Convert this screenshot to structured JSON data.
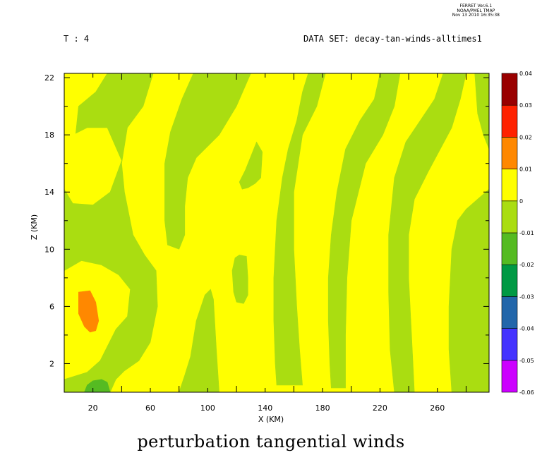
{
  "header": {
    "time_label": "T : 4",
    "dataset_label": "DATA SET: decay-tan-winds-alltimes1",
    "ferret_lines": [
      "FERRET  Ver.6.1",
      "NOAA/PMEL TMAP",
      "Nov 13 2010 16:35:38"
    ]
  },
  "chart_data": {
    "type": "heatmap",
    "title": "perturbation tangential winds",
    "xlabel": "X (KM)",
    "ylabel": "Z (KM)",
    "xlim": [
      0,
      296
    ],
    "ylim": [
      0,
      22.3
    ],
    "x_ticks": [
      20,
      60,
      100,
      140,
      180,
      220,
      260
    ],
    "y_ticks": [
      2,
      6,
      10,
      14,
      18,
      22
    ],
    "colorbar": {
      "levels": [
        -0.06,
        -0.05,
        -0.04,
        -0.03,
        -0.02,
        -0.01,
        0,
        0.01,
        0.02,
        0.03,
        0.04
      ],
      "labels": [
        "-0.06",
        "-0.05",
        "-0.04",
        "-0.03",
        "-0.02",
        "-0.01",
        "0",
        "0.01",
        "0.02",
        "0.03",
        "0.04"
      ],
      "colors": [
        "#cc00ff",
        "#4433ff",
        "#2266aa",
        "#009944",
        "#55bb22",
        "#aadd11",
        "#ffff00",
        "#ff8800",
        "#ff2200",
        "#990000"
      ]
    },
    "background_level_color": "#ffff00",
    "regions": [
      {
        "level": "-0.01 to 0",
        "color": "#aadd11",
        "polygon": [
          [
            30,
            22.3
          ],
          [
            62,
            22.3
          ],
          [
            55,
            20
          ],
          [
            44,
            18.5
          ],
          [
            40,
            16
          ],
          [
            42,
            14
          ],
          [
            48,
            11
          ],
          [
            56,
            9.6
          ],
          [
            64,
            8.5
          ],
          [
            65,
            6
          ],
          [
            60,
            3.5
          ],
          [
            52,
            2.2
          ],
          [
            42,
            1.5
          ],
          [
            36,
            0.9
          ],
          [
            32,
            0
          ],
          [
            0,
            0
          ],
          [
            0,
            0.9
          ],
          [
            16,
            1.4
          ],
          [
            25,
            2.2
          ],
          [
            30,
            3.2
          ],
          [
            36,
            4.4
          ],
          [
            44,
            5.3
          ],
          [
            46,
            7.2
          ],
          [
            38,
            8.2
          ],
          [
            26,
            8.9
          ],
          [
            12,
            9.2
          ],
          [
            0,
            8.5
          ],
          [
            0,
            14.2
          ],
          [
            6,
            13.2
          ],
          [
            20,
            13.1
          ],
          [
            32,
            14
          ],
          [
            40,
            16.2
          ],
          [
            30,
            18.5
          ],
          [
            16,
            18.5
          ],
          [
            8,
            18.1
          ],
          [
            10,
            20
          ],
          [
            22,
            21
          ]
        ]
      },
      {
        "level": "-0.01 to 0",
        "color": "#aadd11",
        "polygon": [
          [
            90,
            22.3
          ],
          [
            130,
            22.3
          ],
          [
            120,
            20
          ],
          [
            108,
            18
          ],
          [
            92,
            16.4
          ],
          [
            86,
            15
          ],
          [
            84,
            13
          ],
          [
            84,
            11
          ],
          [
            80,
            10
          ],
          [
            72,
            10.3
          ],
          [
            70,
            12
          ],
          [
            70,
            16
          ],
          [
            74,
            18.2
          ],
          [
            82,
            20.5
          ]
        ]
      },
      {
        "level": "-0.01 to 0",
        "color": "#aadd11",
        "polygon": [
          [
            80,
            0
          ],
          [
            108,
            0
          ],
          [
            106,
            3
          ],
          [
            104,
            6.5
          ],
          [
            102,
            7.2
          ],
          [
            98,
            6.8
          ],
          [
            92,
            5
          ],
          [
            88,
            2.5
          ],
          [
            84,
            1.2
          ]
        ]
      },
      {
        "level": "-0.01 to 0",
        "color": "#aadd11",
        "polygon": [
          [
            134,
            17.5
          ],
          [
            138,
            16.8
          ],
          [
            137,
            15
          ],
          [
            133,
            14.6
          ],
          [
            128,
            14.3
          ],
          [
            124,
            14.2
          ],
          [
            122,
            14.7
          ],
          [
            126,
            15.5
          ],
          [
            130,
            16.5
          ]
        ]
      },
      {
        "level": "-0.01 to 0",
        "color": "#aadd11",
        "polygon": [
          [
            122,
            9.6
          ],
          [
            127,
            9.5
          ],
          [
            128,
            8
          ],
          [
            128,
            6.8
          ],
          [
            125,
            6.2
          ],
          [
            120,
            6.3
          ],
          [
            118,
            7
          ],
          [
            117,
            8.5
          ],
          [
            119,
            9.4
          ]
        ]
      },
      {
        "level": "-0.01 to 0",
        "color": "#aadd11",
        "polygon": [
          [
            148,
            0.5
          ],
          [
            166,
            0.5
          ],
          [
            164,
            3
          ],
          [
            162,
            6
          ],
          [
            160,
            10
          ],
          [
            160,
            14
          ],
          [
            166,
            18
          ],
          [
            176,
            20
          ],
          [
            182,
            22.3
          ],
          [
            170,
            22.3
          ],
          [
            166,
            21
          ],
          [
            162,
            19
          ],
          [
            156,
            17
          ],
          [
            152,
            15
          ],
          [
            148,
            12
          ],
          [
            146,
            8
          ],
          [
            146,
            5
          ],
          [
            147,
            2
          ]
        ]
      },
      {
        "level": "-0.01 to 0",
        "color": "#aadd11",
        "polygon": [
          [
            186,
            0.3
          ],
          [
            196,
            0.3
          ],
          [
            196,
            4
          ],
          [
            197,
            8
          ],
          [
            200,
            12
          ],
          [
            210,
            16
          ],
          [
            222,
            18
          ],
          [
            230,
            20
          ],
          [
            234,
            22.3
          ],
          [
            220,
            22.3
          ],
          [
            216,
            20.5
          ],
          [
            206,
            19
          ],
          [
            196,
            17
          ],
          [
            190,
            14
          ],
          [
            186,
            11
          ],
          [
            184,
            8
          ],
          [
            184,
            5
          ],
          [
            185,
            2
          ]
        ]
      },
      {
        "level": "-0.01 to 0",
        "color": "#aadd11",
        "polygon": [
          [
            230,
            0
          ],
          [
            244,
            0
          ],
          [
            242,
            4
          ],
          [
            240,
            8
          ],
          [
            240,
            11
          ],
          [
            244,
            13.5
          ],
          [
            254,
            15.5
          ],
          [
            262,
            17
          ],
          [
            270,
            18.5
          ],
          [
            276,
            20.5
          ],
          [
            280,
            22.3
          ],
          [
            264,
            22.3
          ],
          [
            258,
            20.5
          ],
          [
            248,
            19
          ],
          [
            238,
            17.5
          ],
          [
            230,
            15
          ],
          [
            226,
            11
          ],
          [
            226,
            7
          ],
          [
            227,
            3
          ]
        ]
      },
      {
        "level": "-0.01 to 0",
        "color": "#aadd11",
        "polygon": [
          [
            270,
            0
          ],
          [
            296,
            0
          ],
          [
            296,
            14.2
          ],
          [
            288,
            13.5
          ],
          [
            280,
            12.8
          ],
          [
            274,
            12
          ],
          [
            270,
            10
          ],
          [
            268,
            6
          ],
          [
            268,
            3
          ]
        ]
      },
      {
        "level": "-0.01 to 0",
        "color": "#aadd11",
        "polygon": [
          [
            286,
            22.3
          ],
          [
            296,
            22.3
          ],
          [
            296,
            17
          ],
          [
            292,
            18
          ],
          [
            288,
            19.5
          ]
        ]
      },
      {
        "level": "0.01 to 0.02",
        "color": "#ff8800",
        "polygon": [
          [
            10,
            7
          ],
          [
            18,
            7.1
          ],
          [
            22,
            6.3
          ],
          [
            24,
            5
          ],
          [
            22,
            4.3
          ],
          [
            18,
            4.2
          ],
          [
            14,
            4.6
          ],
          [
            10,
            5.5
          ]
        ]
      },
      {
        "level": "-0.02 to -0.01",
        "color": "#55bb22",
        "polygon": [
          [
            14,
            0
          ],
          [
            32,
            0
          ],
          [
            30,
            0.7
          ],
          [
            26,
            0.9
          ],
          [
            20,
            0.8
          ],
          [
            16,
            0.5
          ]
        ]
      }
    ]
  }
}
